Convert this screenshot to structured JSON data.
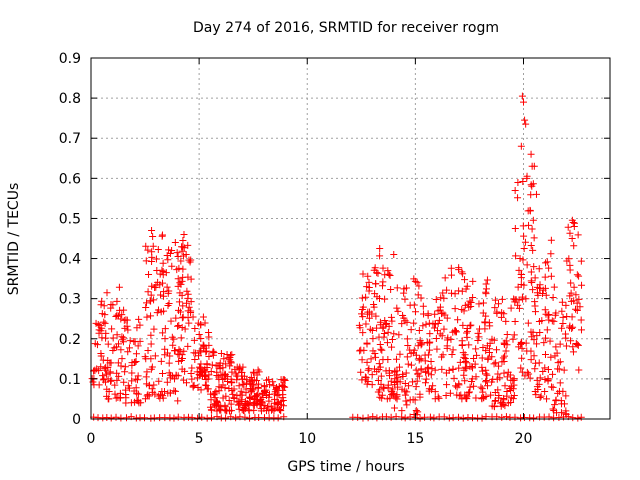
{
  "chart_data": {
    "type": "scatter",
    "title": "Day 274 of 2016, SRMTID for receiver rogm",
    "xlabel": "GPS time / hours",
    "ylabel": "SRMTID / TECUs",
    "xlim": [
      0,
      24
    ],
    "ylim": [
      0,
      0.9
    ],
    "xticks": [
      0,
      5,
      10,
      15,
      20
    ],
    "yticks": [
      0,
      0.1,
      0.2,
      0.3,
      0.4,
      0.5,
      0.6,
      0.7,
      0.8,
      0.9
    ],
    "xtick_labels": [
      "0",
      "5",
      "10",
      "15",
      "20"
    ],
    "ytick_labels": [
      "0",
      "0.1",
      "0.2",
      "0.3",
      "0.4",
      "0.5",
      "0.6",
      "0.7",
      "0.8",
      "0.9"
    ],
    "grid": true,
    "marker": "plus",
    "marker_color": "#ff0000",
    "seed": 274,
    "clusters": [
      {
        "x_start": 0.05,
        "x_end": 0.7,
        "y_min": 0.08,
        "y_max": 0.3,
        "count": 40
      },
      {
        "x_start": 0.7,
        "x_end": 1.6,
        "y_min": 0.05,
        "y_max": 0.33,
        "count": 60
      },
      {
        "x_start": 1.6,
        "x_end": 2.3,
        "y_min": 0.04,
        "y_max": 0.25,
        "count": 40
      },
      {
        "x_start": 2.5,
        "x_end": 3.4,
        "y_min": 0.05,
        "y_max": 0.47,
        "count": 75
      },
      {
        "x_start": 3.4,
        "x_end": 4.1,
        "y_min": 0.03,
        "y_max": 0.44,
        "count": 55
      },
      {
        "x_start": 4.1,
        "x_end": 4.7,
        "y_min": 0.08,
        "y_max": 0.46,
        "count": 50
      },
      {
        "x_start": 4.7,
        "x_end": 5.5,
        "y_min": 0.07,
        "y_max": 0.26,
        "count": 60
      },
      {
        "x_start": 5.5,
        "x_end": 6.6,
        "y_min": 0.02,
        "y_max": 0.17,
        "count": 85
      },
      {
        "x_start": 6.6,
        "x_end": 7.8,
        "y_min": 0.02,
        "y_max": 0.13,
        "count": 95
      },
      {
        "x_start": 7.8,
        "x_end": 9.0,
        "y_min": 0.02,
        "y_max": 0.1,
        "count": 70
      },
      {
        "x_start": 12.4,
        "x_end": 13.2,
        "y_min": 0.08,
        "y_max": 0.38,
        "count": 55
      },
      {
        "x_start": 13.2,
        "x_end": 14.0,
        "y_min": 0.05,
        "y_max": 0.42,
        "count": 65
      },
      {
        "x_start": 14.0,
        "x_end": 15.2,
        "y_min": 0.01,
        "y_max": 0.35,
        "count": 85
      },
      {
        "x_start": 15.2,
        "x_end": 16.2,
        "y_min": 0.05,
        "y_max": 0.31,
        "count": 60
      },
      {
        "x_start": 16.2,
        "x_end": 17.2,
        "y_min": 0.05,
        "y_max": 0.38,
        "count": 60
      },
      {
        "x_start": 17.2,
        "x_end": 18.5,
        "y_min": 0.05,
        "y_max": 0.35,
        "count": 95
      },
      {
        "x_start": 18.5,
        "x_end": 19.6,
        "y_min": 0.03,
        "y_max": 0.3,
        "count": 75
      },
      {
        "x_start": 19.6,
        "x_end": 20.5,
        "y_min": 0.1,
        "y_max": 0.62,
        "count": 70
      },
      {
        "x_start": 20.5,
        "x_end": 21.3,
        "y_min": 0.05,
        "y_max": 0.45,
        "count": 60
      },
      {
        "x_start": 21.3,
        "x_end": 22.0,
        "y_min": 0.01,
        "y_max": 0.35,
        "count": 45
      },
      {
        "x_start": 22.0,
        "x_end": 22.7,
        "y_min": 0.12,
        "y_max": 0.5,
        "count": 40
      }
    ],
    "highlight_points": [
      [
        19.95,
        0.805
      ],
      [
        20.0,
        0.79
      ],
      [
        20.05,
        0.745
      ],
      [
        20.1,
        0.735
      ],
      [
        20.35,
        0.66
      ],
      [
        20.5,
        0.63
      ],
      [
        20.4,
        0.63
      ],
      [
        19.9,
        0.68
      ],
      [
        20.15,
        0.6
      ],
      [
        20.6,
        0.56
      ],
      [
        20.3,
        0.52
      ],
      [
        22.3,
        0.49
      ],
      [
        22.35,
        0.48
      ],
      [
        22.25,
        0.45
      ],
      [
        2.8,
        0.47
      ],
      [
        2.85,
        0.455
      ],
      [
        4.3,
        0.46
      ],
      [
        4.25,
        0.445
      ],
      [
        13.35,
        0.425
      ],
      [
        14.0,
        0.41
      ],
      [
        4.4,
        0.41
      ],
      [
        3.9,
        0.44
      ]
    ],
    "zero_line_ranges": [
      [
        0.05,
        9.0
      ],
      [
        12.1,
        22.8
      ]
    ],
    "zero_line_step": 0.22
  }
}
